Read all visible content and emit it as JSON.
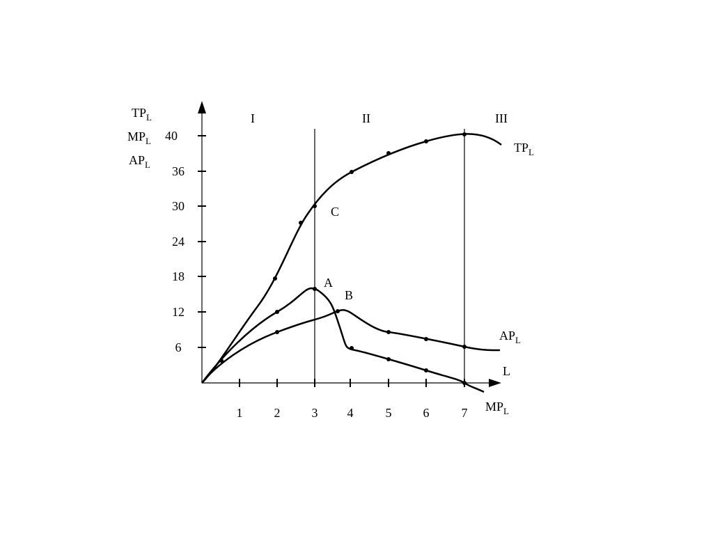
{
  "axis": {
    "y_label": [
      {
        "main": "TP",
        "sub": "L"
      },
      {
        "main": "MP",
        "sub": "L"
      },
      {
        "main": "AP",
        "sub": "L"
      }
    ],
    "x_label": "L",
    "y_ticks": [
      "6",
      "12",
      "18",
      "24",
      "30",
      "36",
      "40"
    ],
    "x_ticks": [
      "1",
      "2",
      "3",
      "4",
      "5",
      "6",
      "7"
    ]
  },
  "regions": [
    "I",
    "II",
    "III"
  ],
  "points": [
    "C",
    "A",
    "B"
  ],
  "curves": [
    {
      "main": "TP",
      "sub": "L"
    },
    {
      "main": "AP",
      "sub": "L"
    },
    {
      "main": "MP",
      "sub": "L"
    }
  ]
}
